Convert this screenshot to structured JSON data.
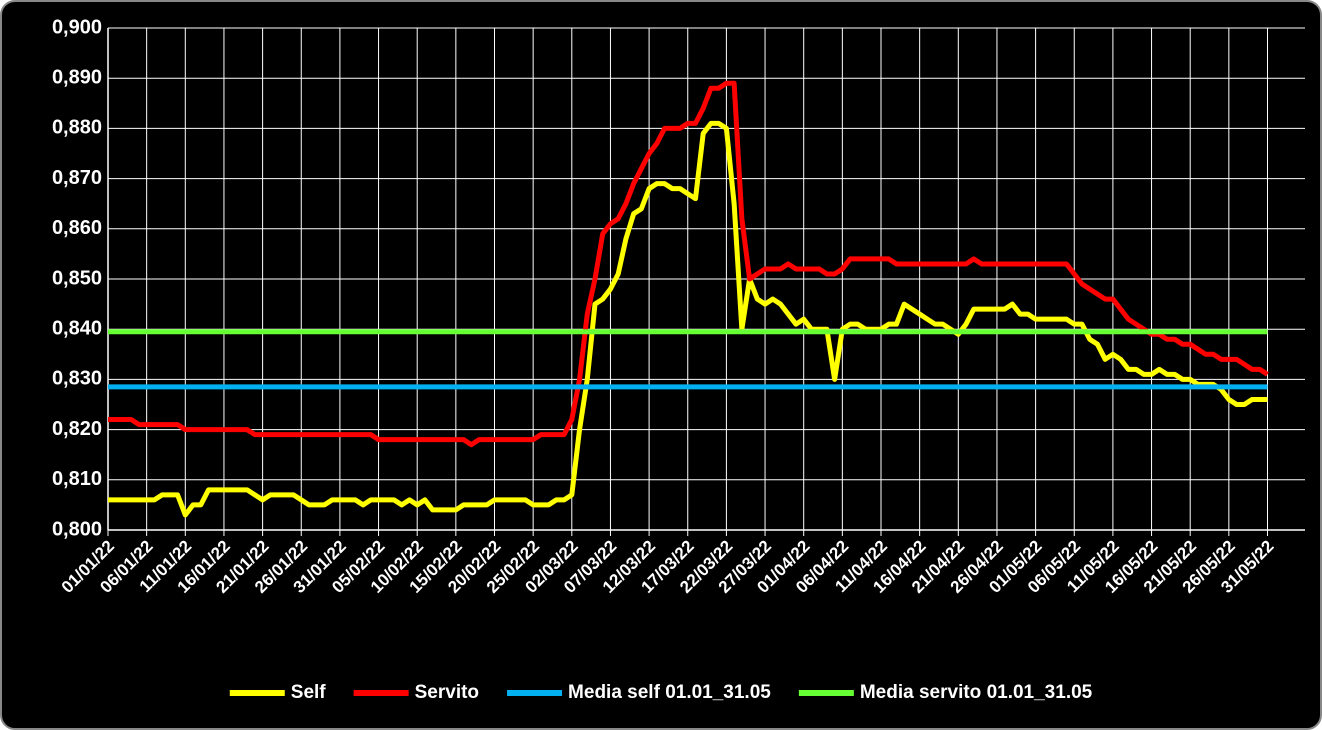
{
  "chart_data": {
    "type": "line",
    "categories": [
      "01/01/22",
      null,
      null,
      null,
      null,
      "06/01/22",
      null,
      null,
      null,
      null,
      "11/01/22",
      null,
      null,
      null,
      null,
      "16/01/22",
      null,
      null,
      null,
      null,
      "21/01/22",
      null,
      null,
      null,
      null,
      "26/01/22",
      null,
      null,
      null,
      null,
      "31/01/22",
      null,
      null,
      null,
      null,
      "05/02/22",
      null,
      null,
      null,
      null,
      "10/02/22",
      null,
      null,
      null,
      null,
      "15/02/22",
      null,
      null,
      null,
      null,
      "20/02/22",
      null,
      null,
      null,
      null,
      "25/02/22",
      null,
      null,
      null,
      null,
      "02/03/22",
      null,
      null,
      null,
      null,
      "07/03/22",
      null,
      null,
      null,
      null,
      "12/03/22",
      null,
      null,
      null,
      null,
      "17/03/22",
      null,
      null,
      null,
      null,
      "22/03/22",
      null,
      null,
      null,
      null,
      "27/03/22",
      null,
      null,
      null,
      null,
      "01/04/22",
      null,
      null,
      null,
      null,
      "06/04/22",
      null,
      null,
      null,
      null,
      "11/04/22",
      null,
      null,
      null,
      null,
      "16/04/22",
      null,
      null,
      null,
      null,
      "21/04/22",
      null,
      null,
      null,
      null,
      "26/04/22",
      null,
      null,
      null,
      null,
      "01/05/22",
      null,
      null,
      null,
      null,
      "06/05/22",
      null,
      null,
      null,
      null,
      "11/05/22",
      null,
      null,
      null,
      null,
      "16/05/22",
      null,
      null,
      null,
      null,
      "21/05/22",
      null,
      null,
      null,
      null,
      "26/05/22",
      null,
      null,
      null,
      null,
      "31/05/22"
    ],
    "series": [
      {
        "name": "Self",
        "color": "#ffff00",
        "values": [
          0.806,
          0.806,
          0.806,
          0.806,
          0.806,
          0.806,
          0.806,
          0.807,
          0.807,
          0.807,
          0.803,
          0.805,
          0.805,
          0.808,
          0.808,
          0.808,
          0.808,
          0.808,
          0.808,
          0.807,
          0.806,
          0.807,
          0.807,
          0.807,
          0.807,
          0.806,
          0.805,
          0.805,
          0.805,
          0.806,
          0.806,
          0.806,
          0.806,
          0.805,
          0.806,
          0.806,
          0.806,
          0.806,
          0.805,
          0.806,
          0.805,
          0.806,
          0.804,
          0.804,
          0.804,
          0.804,
          0.805,
          0.805,
          0.805,
          0.805,
          0.806,
          0.806,
          0.806,
          0.806,
          0.806,
          0.805,
          0.805,
          0.805,
          0.806,
          0.806,
          0.807,
          0.82,
          0.83,
          0.845,
          0.846,
          0.848,
          0.851,
          0.858,
          0.863,
          0.864,
          0.868,
          0.869,
          0.869,
          0.868,
          0.868,
          0.867,
          0.866,
          0.879,
          0.881,
          0.881,
          0.88,
          0.865,
          0.84,
          0.85,
          0.846,
          0.845,
          0.846,
          0.845,
          0.843,
          0.841,
          0.842,
          0.84,
          0.84,
          0.84,
          0.83,
          0.84,
          0.841,
          0.841,
          0.84,
          0.84,
          0.84,
          0.841,
          0.841,
          0.845,
          0.844,
          0.843,
          0.842,
          0.841,
          0.841,
          0.84,
          0.839,
          0.841,
          0.844,
          0.844,
          0.844,
          0.844,
          0.844,
          0.845,
          0.843,
          0.843,
          0.842,
          0.842,
          0.842,
          0.842,
          0.842,
          0.841,
          0.841,
          0.838,
          0.837,
          0.834,
          0.835,
          0.834,
          0.832,
          0.832,
          0.831,
          0.831,
          0.832,
          0.831,
          0.831,
          0.83,
          0.83,
          0.829,
          0.829,
          0.829,
          0.828,
          0.826,
          0.825,
          0.825,
          0.826,
          0.826,
          0.826
        ]
      },
      {
        "name": "Servito",
        "color": "#ff0000",
        "values": [
          0.822,
          0.822,
          0.822,
          0.822,
          0.821,
          0.821,
          0.821,
          0.821,
          0.821,
          0.821,
          0.82,
          0.82,
          0.82,
          0.82,
          0.82,
          0.82,
          0.82,
          0.82,
          0.82,
          0.819,
          0.819,
          0.819,
          0.819,
          0.819,
          0.819,
          0.819,
          0.819,
          0.819,
          0.819,
          0.819,
          0.819,
          0.819,
          0.819,
          0.819,
          0.819,
          0.818,
          0.818,
          0.818,
          0.818,
          0.818,
          0.818,
          0.818,
          0.818,
          0.818,
          0.818,
          0.818,
          0.818,
          0.817,
          0.818,
          0.818,
          0.818,
          0.818,
          0.818,
          0.818,
          0.818,
          0.818,
          0.819,
          0.819,
          0.819,
          0.819,
          0.822,
          0.83,
          0.843,
          0.85,
          0.859,
          0.861,
          0.862,
          0.865,
          0.869,
          0.872,
          0.875,
          0.877,
          0.88,
          0.88,
          0.88,
          0.881,
          0.881,
          0.884,
          0.888,
          0.888,
          0.889,
          0.889,
          0.862,
          0.85,
          0.851,
          0.852,
          0.852,
          0.852,
          0.853,
          0.852,
          0.852,
          0.852,
          0.852,
          0.851,
          0.851,
          0.852,
          0.854,
          0.854,
          0.854,
          0.854,
          0.854,
          0.854,
          0.853,
          0.853,
          0.853,
          0.853,
          0.853,
          0.853,
          0.853,
          0.853,
          0.853,
          0.853,
          0.854,
          0.853,
          0.853,
          0.853,
          0.853,
          0.853,
          0.853,
          0.853,
          0.853,
          0.853,
          0.853,
          0.853,
          0.853,
          0.851,
          0.849,
          0.848,
          0.847,
          0.846,
          0.846,
          0.844,
          0.842,
          0.841,
          0.84,
          0.839,
          0.839,
          0.838,
          0.838,
          0.837,
          0.837,
          0.836,
          0.835,
          0.835,
          0.834,
          0.834,
          0.834,
          0.833,
          0.832,
          0.832,
          0.831
        ]
      },
      {
        "name": "Media self 01.01_31.05",
        "color": "#00b0f0",
        "values": [
          0.8285,
          0.8285,
          0.8285,
          0.8285,
          0.8285,
          0.8285,
          0.8285,
          0.8285,
          0.8285,
          0.8285,
          0.8285,
          0.8285,
          0.8285,
          0.8285,
          0.8285,
          0.8285,
          0.8285,
          0.8285,
          0.8285,
          0.8285,
          0.8285,
          0.8285,
          0.8285,
          0.8285,
          0.8285,
          0.8285,
          0.8285,
          0.8285,
          0.8285,
          0.8285,
          0.8285,
          0.8285,
          0.8285,
          0.8285,
          0.8285,
          0.8285,
          0.8285,
          0.8285,
          0.8285,
          0.8285,
          0.8285,
          0.8285,
          0.8285,
          0.8285,
          0.8285,
          0.8285,
          0.8285,
          0.8285,
          0.8285,
          0.8285,
          0.8285,
          0.8285,
          0.8285,
          0.8285,
          0.8285,
          0.8285,
          0.8285,
          0.8285,
          0.8285,
          0.8285,
          0.8285,
          0.8285,
          0.8285,
          0.8285,
          0.8285,
          0.8285,
          0.8285,
          0.8285,
          0.8285,
          0.8285,
          0.8285,
          0.8285,
          0.8285,
          0.8285,
          0.8285,
          0.8285,
          0.8285,
          0.8285,
          0.8285,
          0.8285,
          0.8285,
          0.8285,
          0.8285,
          0.8285,
          0.8285,
          0.8285,
          0.8285,
          0.8285,
          0.8285,
          0.8285,
          0.8285,
          0.8285,
          0.8285,
          0.8285,
          0.8285,
          0.8285,
          0.8285,
          0.8285,
          0.8285,
          0.8285,
          0.8285,
          0.8285,
          0.8285,
          0.8285,
          0.8285,
          0.8285,
          0.8285,
          0.8285,
          0.8285,
          0.8285,
          0.8285,
          0.8285,
          0.8285,
          0.8285,
          0.8285,
          0.8285,
          0.8285,
          0.8285,
          0.8285,
          0.8285,
          0.8285,
          0.8285,
          0.8285,
          0.8285,
          0.8285,
          0.8285,
          0.8285,
          0.8285,
          0.8285,
          0.8285,
          0.8285,
          0.8285,
          0.8285,
          0.8285,
          0.8285,
          0.8285,
          0.8285,
          0.8285,
          0.8285,
          0.8285,
          0.8285,
          0.8285,
          0.8285,
          0.8285,
          0.8285,
          0.8285,
          0.8285,
          0.8285,
          0.8285,
          0.8285,
          0.8285
        ]
      },
      {
        "name": "Media servito 01.01_31.05",
        "color": "#66ff33",
        "values": [
          0.8395,
          0.8395,
          0.8395,
          0.8395,
          0.8395,
          0.8395,
          0.8395,
          0.8395,
          0.8395,
          0.8395,
          0.8395,
          0.8395,
          0.8395,
          0.8395,
          0.8395,
          0.8395,
          0.8395,
          0.8395,
          0.8395,
          0.8395,
          0.8395,
          0.8395,
          0.8395,
          0.8395,
          0.8395,
          0.8395,
          0.8395,
          0.8395,
          0.8395,
          0.8395,
          0.8395,
          0.8395,
          0.8395,
          0.8395,
          0.8395,
          0.8395,
          0.8395,
          0.8395,
          0.8395,
          0.8395,
          0.8395,
          0.8395,
          0.8395,
          0.8395,
          0.8395,
          0.8395,
          0.8395,
          0.8395,
          0.8395,
          0.8395,
          0.8395,
          0.8395,
          0.8395,
          0.8395,
          0.8395,
          0.8395,
          0.8395,
          0.8395,
          0.8395,
          0.8395,
          0.8395,
          0.8395,
          0.8395,
          0.8395,
          0.8395,
          0.8395,
          0.8395,
          0.8395,
          0.8395,
          0.8395,
          0.8395,
          0.8395,
          0.8395,
          0.8395,
          0.8395,
          0.8395,
          0.8395,
          0.8395,
          0.8395,
          0.8395,
          0.8395,
          0.8395,
          0.8395,
          0.8395,
          0.8395,
          0.8395,
          0.8395,
          0.8395,
          0.8395,
          0.8395,
          0.8395,
          0.8395,
          0.8395,
          0.8395,
          0.8395,
          0.8395,
          0.8395,
          0.8395,
          0.8395,
          0.8395,
          0.8395,
          0.8395,
          0.8395,
          0.8395,
          0.8395,
          0.8395,
          0.8395,
          0.8395,
          0.8395,
          0.8395,
          0.8395,
          0.8395,
          0.8395,
          0.8395,
          0.8395,
          0.8395,
          0.8395,
          0.8395,
          0.8395,
          0.8395,
          0.8395,
          0.8395,
          0.8395,
          0.8395,
          0.8395,
          0.8395,
          0.8395,
          0.8395,
          0.8395,
          0.8395,
          0.8395,
          0.8395,
          0.8395,
          0.8395,
          0.8395,
          0.8395,
          0.8395,
          0.8395,
          0.8395,
          0.8395,
          0.8395,
          0.8395,
          0.8395,
          0.8395,
          0.8395,
          0.8395,
          0.8395,
          0.8395,
          0.8395,
          0.8395,
          0.8395
        ]
      }
    ],
    "ylim": [
      0.8,
      0.9
    ],
    "yticks": [
      {
        "value": 0.8,
        "label": "0,800"
      },
      {
        "value": 0.81,
        "label": "0,810"
      },
      {
        "value": 0.82,
        "label": "0,820"
      },
      {
        "value": 0.83,
        "label": "0,830"
      },
      {
        "value": 0.84,
        "label": "0,840"
      },
      {
        "value": 0.85,
        "label": "0,850"
      },
      {
        "value": 0.86,
        "label": "0,860"
      },
      {
        "value": 0.87,
        "label": "0,870"
      },
      {
        "value": 0.88,
        "label": "0,880"
      },
      {
        "value": 0.89,
        "label": "0,890"
      },
      {
        "value": 0.9,
        "label": "0,900"
      }
    ],
    "grid": true,
    "legend": "bottom"
  }
}
